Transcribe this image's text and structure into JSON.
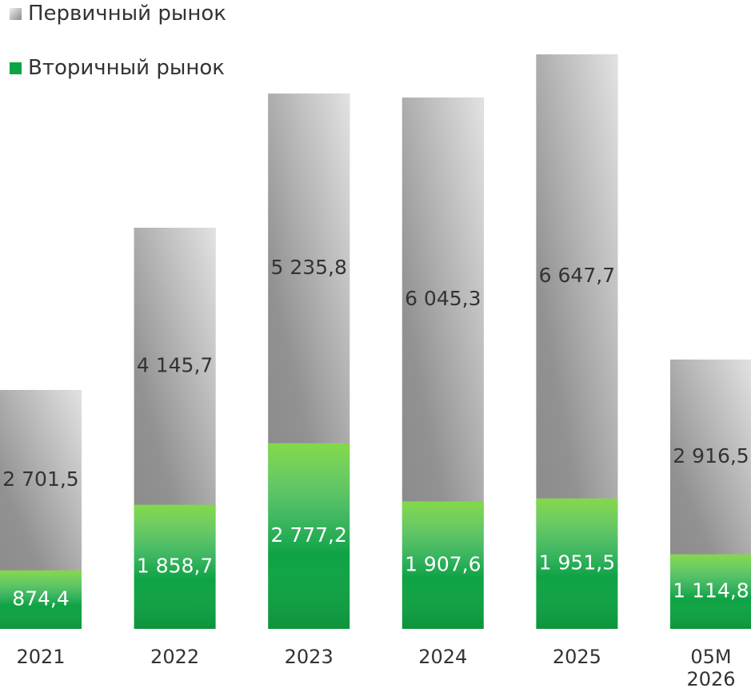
{
  "chart_data": {
    "type": "stacked_bar",
    "categories": [
      "2021",
      "2022",
      "2023",
      "2024",
      "2025",
      "05M\n2026"
    ],
    "series": [
      {
        "name": "Вторичный рынок",
        "color": "#0ea343",
        "values": [
          874.4,
          1858.7,
          2777.2,
          1907.6,
          1951.5,
          1114.8
        ],
        "value_labels": [
          "874,4",
          "1 858,7",
          "2 777,2",
          "1 907,6",
          "1 951,5",
          "1 114,8"
        ]
      },
      {
        "name": "Первичный рынок",
        "color": "#8c8c8c",
        "values": [
          2701.5,
          4145.7,
          5235.8,
          6045.3,
          6647.7,
          2916.5
        ],
        "value_labels": [
          "2 701,5",
          "4 145,7",
          "5 235,8",
          "6 045,3",
          "6 647,7",
          "2 916,5"
        ]
      }
    ],
    "ylim": [
      0,
      8600
    ]
  }
}
